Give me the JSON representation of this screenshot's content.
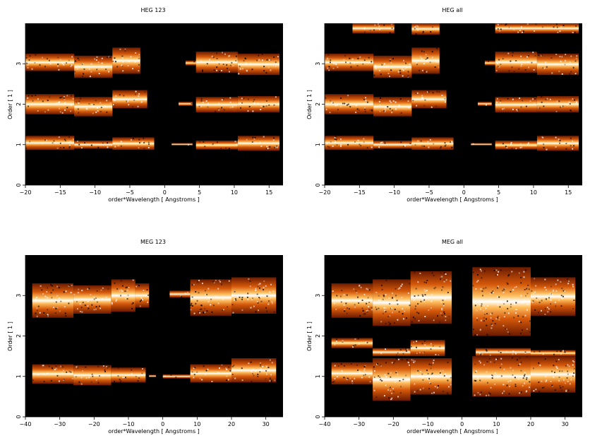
{
  "chart_data": [
    {
      "type": "heatmap",
      "title": "HEG 123",
      "xlabel": "order*Wavelength [ Angstroms ]",
      "ylabel": "Order [ 1 ]",
      "xlim": [
        -20,
        17
      ],
      "ylim": [
        0,
        4
      ],
      "xticks": [
        -20,
        -15,
        -10,
        -5,
        0,
        5,
        10,
        15
      ],
      "yticks": [
        0,
        1,
        2,
        3
      ],
      "bands": [
        {
          "order": 1,
          "segments": [
            [
              -20,
              -13,
              1.22,
              0.87
            ],
            [
              -13,
              -7.5,
              1.1,
              0.9
            ],
            [
              -7.5,
              -1.5,
              1.18,
              0.87
            ],
            [
              1,
              4,
              1.04,
              0.98
            ],
            [
              4.5,
              10.5,
              1.1,
              0.88
            ],
            [
              10.5,
              16.5,
              1.22,
              0.85
            ]
          ]
        },
        {
          "order": 2,
          "segments": [
            [
              -20,
              -13,
              2.25,
              1.75
            ],
            [
              -13,
              -7.5,
              2.18,
              1.7
            ],
            [
              -7.5,
              -2.5,
              2.35,
              1.9
            ],
            [
              2,
              4,
              2.06,
              1.96
            ],
            [
              4.5,
              10.5,
              2.18,
              1.8
            ],
            [
              10.5,
              16.5,
              2.2,
              1.8
            ]
          ]
        },
        {
          "order": 3,
          "segments": [
            [
              -20,
              -13,
              3.25,
              2.82
            ],
            [
              -13,
              -7.5,
              3.2,
              2.65
            ],
            [
              -7.5,
              -3.5,
              3.4,
              2.75
            ],
            [
              3,
              4.5,
              3.08,
              2.96
            ],
            [
              4.5,
              10.5,
              3.3,
              2.78
            ],
            [
              10.5,
              16.5,
              3.25,
              2.72
            ]
          ]
        }
      ]
    },
    {
      "type": "heatmap",
      "title": "HEG all",
      "xlabel": "order*Wavelength [ Angstroms ]",
      "ylabel": "Order [ 1 ]",
      "xlim": [
        -20,
        17
      ],
      "ylim": [
        0,
        4
      ],
      "xticks": [
        -20,
        -15,
        -10,
        -5,
        0,
        5,
        10,
        15
      ],
      "yticks": [
        0,
        1,
        2,
        3
      ],
      "bands": [
        {
          "order": 1,
          "segments": [
            [
              -20,
              -13,
              1.22,
              0.87
            ],
            [
              -13,
              -7.5,
              1.1,
              0.9
            ],
            [
              -7.5,
              -1.5,
              1.18,
              0.87
            ],
            [
              1,
              4,
              1.04,
              0.98
            ],
            [
              4.5,
              10.5,
              1.1,
              0.88
            ],
            [
              10.5,
              16.5,
              1.22,
              0.85
            ]
          ]
        },
        {
          "order": 2,
          "segments": [
            [
              -20,
              -13,
              2.25,
              1.75
            ],
            [
              -13,
              -7.5,
              2.18,
              1.7
            ],
            [
              -7.5,
              -2.5,
              2.35,
              1.9
            ],
            [
              2,
              4,
              2.06,
              1.96
            ],
            [
              4.5,
              10.5,
              2.18,
              1.8
            ],
            [
              10.5,
              16.5,
              2.2,
              1.8
            ]
          ]
        },
        {
          "order": 3,
          "segments": [
            [
              -20,
              -13,
              3.25,
              2.82
            ],
            [
              -13,
              -7.5,
              3.2,
              2.65
            ],
            [
              -7.5,
              -3.5,
              3.4,
              2.75
            ],
            [
              3,
              4.5,
              3.08,
              2.96
            ],
            [
              4.5,
              10.5,
              3.3,
              2.78
            ],
            [
              10.5,
              16.5,
              3.25,
              2.72
            ]
          ]
        },
        {
          "order": 4,
          "segments": [
            [
              -16,
              -10,
              4.0,
              3.75
            ],
            [
              -7.5,
              -3.5,
              4.0,
              3.72
            ],
            [
              4.5,
              16.5,
              4.0,
              3.75
            ]
          ]
        }
      ]
    },
    {
      "type": "heatmap",
      "title": "MEG 123",
      "xlabel": "order*Wavelength [ Angstroms ]",
      "ylabel": "Order [ 1 ]",
      "xlim": [
        -40,
        35
      ],
      "ylim": [
        0,
        4
      ],
      "xticks": [
        -40,
        -30,
        -20,
        -10,
        0,
        10,
        20,
        30
      ],
      "yticks": [
        0,
        1,
        2,
        3
      ],
      "bands": [
        {
          "order": 1,
          "segments": [
            [
              -38,
              -26,
              1.3,
              0.82
            ],
            [
              -26,
              -15,
              1.28,
              0.78
            ],
            [
              -15,
              -5,
              1.22,
              0.85
            ],
            [
              -4,
              -2,
              1.04,
              0.98
            ],
            [
              0,
              8,
              1.05,
              0.95
            ],
            [
              8,
              20,
              1.3,
              0.85
            ],
            [
              20,
              33,
              1.45,
              0.85
            ]
          ]
        },
        {
          "order": 3,
          "segments": [
            [
              -38,
              -26,
              3.3,
              2.45
            ],
            [
              -26,
              -15,
              3.25,
              2.55
            ],
            [
              -15,
              -8,
              3.4,
              2.6
            ],
            [
              -8,
              -4,
              3.3,
              2.7
            ],
            [
              2,
              8,
              3.12,
              2.95
            ],
            [
              8,
              20,
              3.4,
              2.5
            ],
            [
              20,
              33,
              3.45,
              2.55
            ]
          ]
        }
      ]
    },
    {
      "type": "heatmap",
      "title": "MEG all",
      "xlabel": "order*Wavelength [ Angstroms ]",
      "ylabel": "Order [ 1 ]",
      "xlim": [
        -40,
        35
      ],
      "ylim": [
        0,
        4
      ],
      "xticks": [
        -40,
        -30,
        -20,
        -10,
        0,
        10,
        20,
        30
      ],
      "yticks": [
        0,
        1,
        2,
        3
      ],
      "bands": [
        {
          "order": 1,
          "segments": [
            [
              -38,
              -26,
              1.35,
              0.8
            ],
            [
              -26,
              -15,
              1.45,
              0.4
            ],
            [
              -15,
              -3,
              1.45,
              0.55
            ],
            [
              3,
              20,
              1.5,
              0.5
            ],
            [
              20,
              33,
              1.5,
              0.6
            ]
          ]
        },
        {
          "order": 2,
          "segments": [
            [
              -38,
              -26,
              1.95,
              1.7
            ],
            [
              -26,
              -15,
              1.7,
              1.5
            ],
            [
              -15,
              -5,
              1.9,
              1.5
            ],
            [
              4,
              20,
              1.7,
              1.5
            ],
            [
              20,
              33,
              1.65,
              1.5
            ]
          ]
        },
        {
          "order": 3,
          "segments": [
            [
              -38,
              -26,
              3.3,
              2.45
            ],
            [
              -26,
              -15,
              3.4,
              2.25
            ],
            [
              -15,
              -3,
              3.6,
              2.3
            ],
            [
              3,
              20,
              3.7,
              2.0
            ],
            [
              20,
              33,
              3.45,
              2.5
            ]
          ]
        }
      ]
    }
  ],
  "colors": {
    "background": "#000000",
    "hot_dark": "#6a1a00",
    "hot_mid": "#d4580a",
    "hot_bright": "#ffc060",
    "hot_white": "#ffffff"
  }
}
